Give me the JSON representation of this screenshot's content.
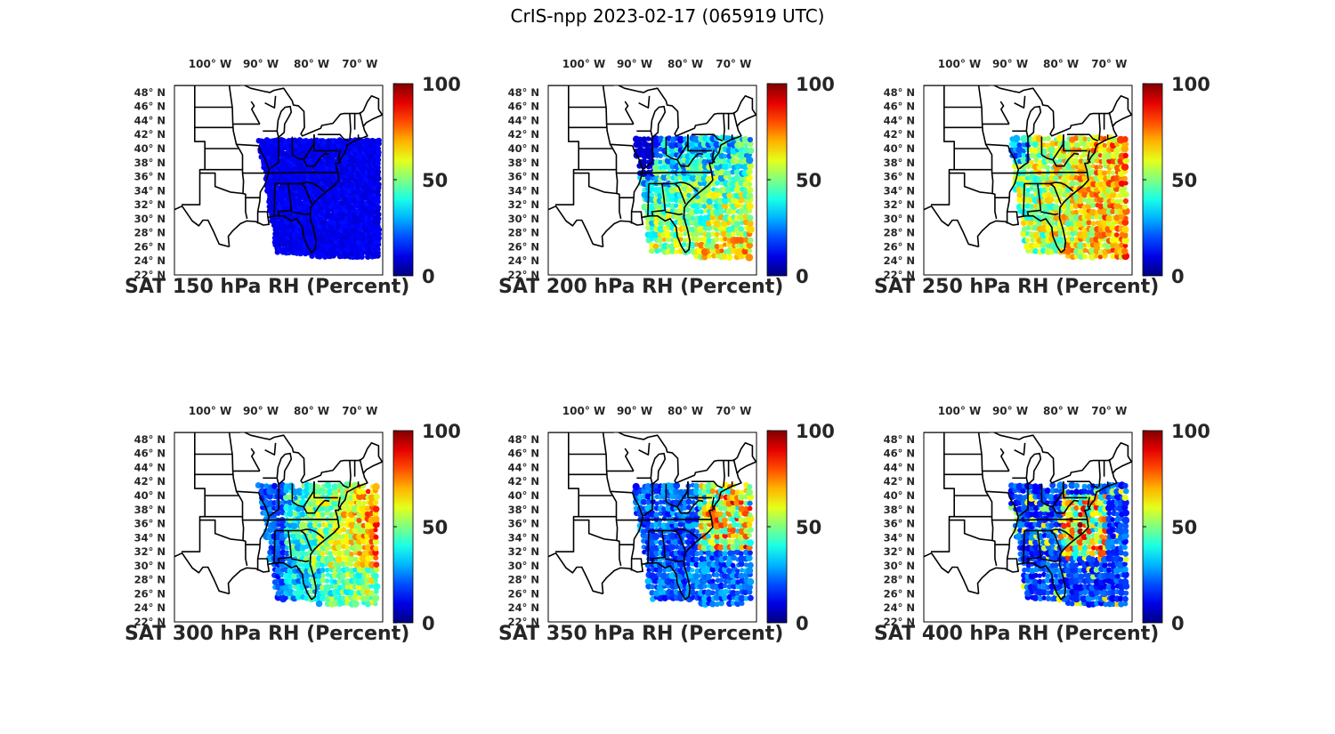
{
  "title": "CrIS-npp 2023-02-17 (065919 UTC)",
  "lon_ticks": [
    "100",
    "90",
    "80",
    "70"
  ],
  "lon_hemisphere": "W",
  "lat_ticks": [
    "48",
    "46",
    "44",
    "42",
    "40",
    "38",
    "36",
    "34",
    "32",
    "30",
    "28",
    "26",
    "24",
    "22"
  ],
  "lat_hemisphere": "N",
  "degree_symbol": "°",
  "colorbar": {
    "colormap": "jet",
    "ticks": [
      "100",
      "50",
      "0"
    ],
    "min": 0,
    "max": 100
  },
  "map_extent": {
    "lon_min": -108,
    "lon_max": -67,
    "lat_min": 22,
    "lat_max": 49
  },
  "panels": [
    {
      "title": "SAT 150 hPa RH (Percent)",
      "level_hpa": 150,
      "style": "dry"
    },
    {
      "title": "SAT 200 hPa RH (Percent)",
      "level_hpa": 200,
      "style": "mixed"
    },
    {
      "title": "SAT 250 hPa RH (Percent)",
      "level_hpa": 250,
      "style": "moist"
    },
    {
      "title": "SAT 300 hPa RH (Percent)",
      "level_hpa": 300,
      "style": "mixed-east"
    },
    {
      "title": "SAT 350 hPa RH (Percent)",
      "level_hpa": 350,
      "style": "blue-east"
    },
    {
      "title": "SAT 400 hPa RH (Percent)",
      "level_hpa": 400,
      "style": "blue-northeast"
    }
  ]
}
